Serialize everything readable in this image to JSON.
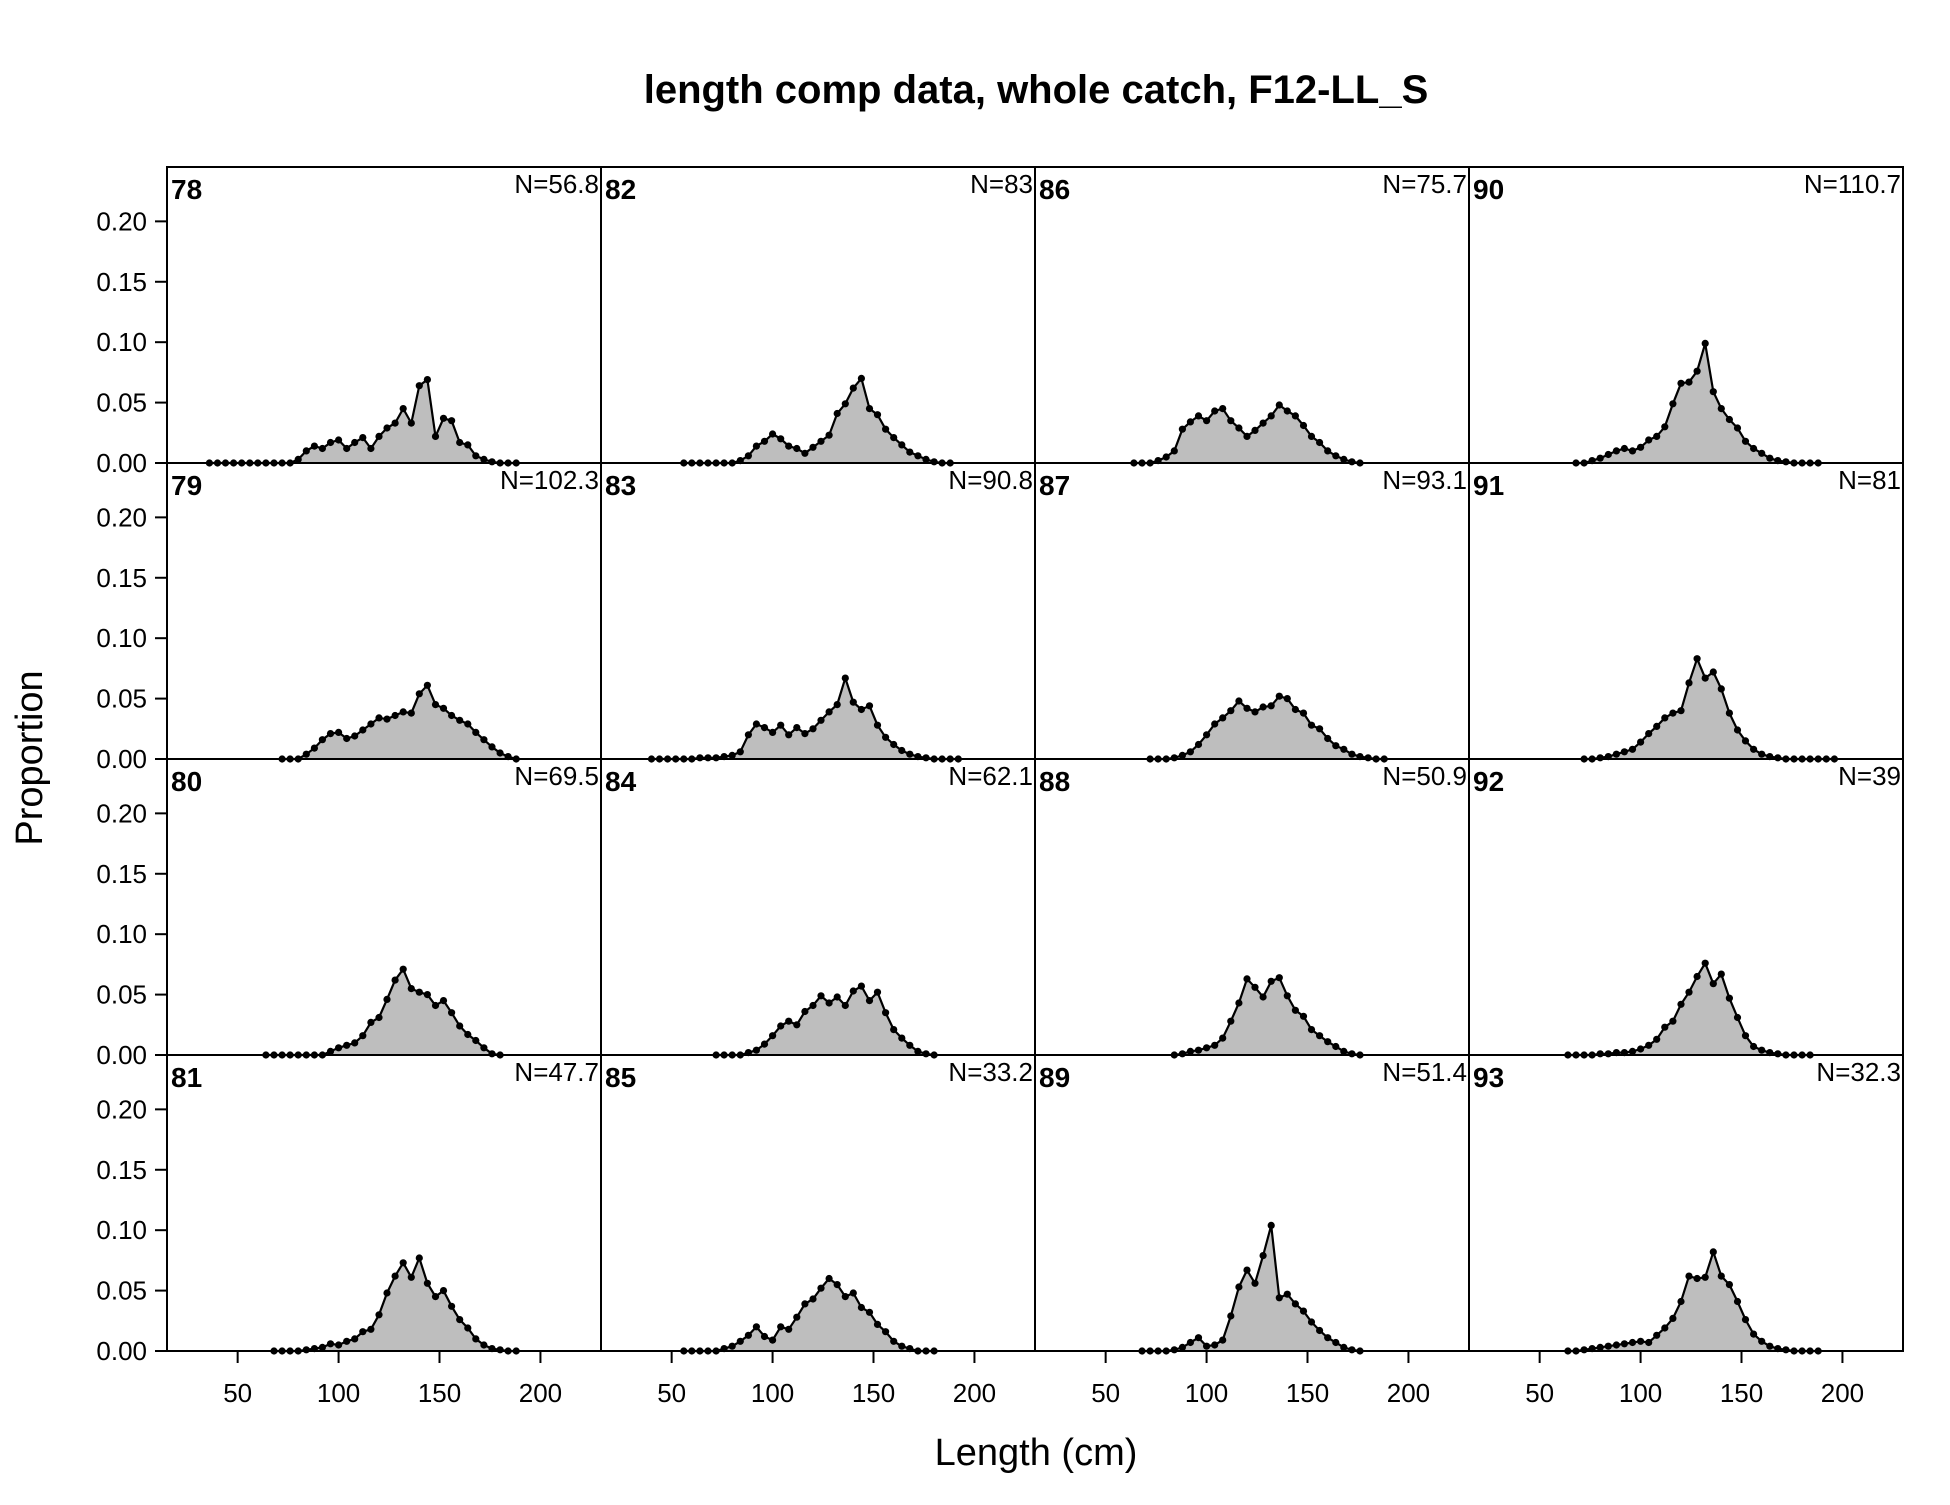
{
  "chart_data": {
    "type": "area",
    "title": "length comp data, whole catch, F12-LL_S",
    "xlabel": "Length (cm)",
    "ylabel": "Proportion",
    "xlim": [
      15,
      230
    ],
    "ylim": [
      0,
      0.245
    ],
    "x_ticks": [
      "50",
      "100",
      "150",
      "200"
    ],
    "y_ticks": [
      "0.00",
      "0.05",
      "0.10",
      "0.15",
      "0.20"
    ],
    "grid": false,
    "fill_color": "#bebebe",
    "line_color": "#000000",
    "layout": {
      "columns": 4,
      "rows": 4,
      "order": "column-major"
    },
    "panels": [
      {
        "label": "78",
        "n_label": "N=56.8",
        "x": [
          36,
          40,
          44,
          48,
          52,
          56,
          60,
          64,
          68,
          72,
          76,
          80,
          84,
          88,
          92,
          96,
          100,
          104,
          108,
          112,
          116,
          120,
          124,
          128,
          132,
          136,
          140,
          144,
          148,
          152,
          156,
          160,
          164,
          168,
          172,
          176,
          180,
          184,
          188
        ],
        "values": [
          0,
          0,
          0,
          0,
          0,
          0,
          0,
          0,
          0,
          0,
          0,
          0.003,
          0.01,
          0.014,
          0.012,
          0.017,
          0.019,
          0.012,
          0.017,
          0.021,
          0.012,
          0.022,
          0.029,
          0.033,
          0.045,
          0.033,
          0.064,
          0.069,
          0.022,
          0.037,
          0.035,
          0.017,
          0.015,
          0.006,
          0.003,
          0.001,
          0,
          0,
          0
        ]
      },
      {
        "label": "79",
        "n_label": "N=102.3",
        "x": [
          72,
          76,
          80,
          84,
          88,
          92,
          96,
          100,
          104,
          108,
          112,
          116,
          120,
          124,
          128,
          132,
          136,
          140,
          144,
          148,
          152,
          156,
          160,
          164,
          168,
          172,
          176,
          180,
          184,
          188
        ],
        "values": [
          0,
          0,
          0,
          0.004,
          0.009,
          0.016,
          0.021,
          0.022,
          0.017,
          0.019,
          0.024,
          0.029,
          0.034,
          0.033,
          0.036,
          0.039,
          0.038,
          0.054,
          0.061,
          0.045,
          0.042,
          0.036,
          0.032,
          0.029,
          0.022,
          0.016,
          0.01,
          0.005,
          0.002,
          0
        ]
      },
      {
        "label": "80",
        "n_label": "N=69.5",
        "x": [
          64,
          68,
          72,
          76,
          80,
          84,
          88,
          92,
          96,
          100,
          104,
          108,
          112,
          116,
          120,
          124,
          128,
          132,
          136,
          140,
          144,
          148,
          152,
          156,
          160,
          164,
          168,
          172,
          176,
          180
        ],
        "values": [
          0,
          0,
          0,
          0,
          0,
          0,
          0,
          0,
          0.003,
          0.006,
          0.008,
          0.01,
          0.016,
          0.027,
          0.031,
          0.046,
          0.062,
          0.071,
          0.055,
          0.052,
          0.05,
          0.041,
          0.045,
          0.035,
          0.024,
          0.017,
          0.012,
          0.006,
          0.001,
          0
        ]
      },
      {
        "label": "81",
        "n_label": "N=47.7",
        "x": [
          68,
          72,
          76,
          80,
          84,
          88,
          92,
          96,
          100,
          104,
          108,
          112,
          116,
          120,
          124,
          128,
          132,
          136,
          140,
          144,
          148,
          152,
          156,
          160,
          164,
          168,
          172,
          176,
          180,
          184,
          188
        ],
        "values": [
          0,
          0,
          0,
          0,
          0.001,
          0.002,
          0.003,
          0.006,
          0.005,
          0.008,
          0.01,
          0.016,
          0.018,
          0.03,
          0.048,
          0.062,
          0.073,
          0.061,
          0.077,
          0.056,
          0.045,
          0.05,
          0.037,
          0.026,
          0.019,
          0.01,
          0.005,
          0.002,
          0.001,
          0,
          0
        ]
      },
      {
        "label": "82",
        "n_label": "N=83",
        "x": [
          56,
          60,
          64,
          68,
          72,
          76,
          80,
          84,
          88,
          92,
          96,
          100,
          104,
          108,
          112,
          116,
          120,
          124,
          128,
          132,
          136,
          140,
          144,
          148,
          152,
          156,
          160,
          164,
          168,
          172,
          176,
          180,
          184,
          188
        ],
        "values": [
          0,
          0,
          0,
          0,
          0,
          0,
          0,
          0.002,
          0.006,
          0.014,
          0.018,
          0.024,
          0.02,
          0.014,
          0.012,
          0.008,
          0.013,
          0.018,
          0.023,
          0.041,
          0.049,
          0.062,
          0.07,
          0.045,
          0.04,
          0.028,
          0.021,
          0.015,
          0.009,
          0.006,
          0.003,
          0.001,
          0,
          0
        ]
      },
      {
        "label": "83",
        "n_label": "N=90.8",
        "x": [
          40,
          44,
          48,
          52,
          56,
          60,
          64,
          68,
          72,
          76,
          80,
          84,
          88,
          92,
          96,
          100,
          104,
          108,
          112,
          116,
          120,
          124,
          128,
          132,
          136,
          140,
          144,
          148,
          152,
          156,
          160,
          164,
          168,
          172,
          176,
          180,
          184,
          188,
          192
        ],
        "values": [
          0,
          0,
          0,
          0,
          0,
          0,
          0.001,
          0.001,
          0.001,
          0.002,
          0.003,
          0.006,
          0.02,
          0.029,
          0.026,
          0.022,
          0.028,
          0.02,
          0.026,
          0.021,
          0.025,
          0.032,
          0.039,
          0.045,
          0.067,
          0.047,
          0.041,
          0.044,
          0.028,
          0.018,
          0.012,
          0.007,
          0.004,
          0.002,
          0.001,
          0,
          0,
          0,
          0
        ]
      },
      {
        "label": "84",
        "n_label": "N=62.1",
        "x": [
          72,
          76,
          80,
          84,
          88,
          92,
          96,
          100,
          104,
          108,
          112,
          116,
          120,
          124,
          128,
          132,
          136,
          140,
          144,
          148,
          152,
          156,
          160,
          164,
          168,
          172,
          176,
          180
        ],
        "values": [
          0,
          0,
          0,
          0,
          0.002,
          0.004,
          0.009,
          0.016,
          0.024,
          0.028,
          0.025,
          0.036,
          0.041,
          0.049,
          0.043,
          0.048,
          0.041,
          0.053,
          0.057,
          0.045,
          0.052,
          0.035,
          0.021,
          0.014,
          0.008,
          0.003,
          0.001,
          0
        ]
      },
      {
        "label": "85",
        "n_label": "N=33.2",
        "x": [
          56,
          60,
          64,
          68,
          72,
          76,
          80,
          84,
          88,
          92,
          96,
          100,
          104,
          108,
          112,
          116,
          120,
          124,
          128,
          132,
          136,
          140,
          144,
          148,
          152,
          156,
          160,
          164,
          168,
          172,
          176,
          180
        ],
        "values": [
          0,
          0,
          0,
          0,
          0,
          0.002,
          0.004,
          0.008,
          0.013,
          0.02,
          0.012,
          0.009,
          0.02,
          0.018,
          0.028,
          0.039,
          0.043,
          0.052,
          0.06,
          0.055,
          0.045,
          0.048,
          0.036,
          0.032,
          0.022,
          0.016,
          0.008,
          0.004,
          0.002,
          0,
          0,
          0
        ]
      },
      {
        "label": "86",
        "n_label": "N=75.7",
        "x": [
          64,
          68,
          72,
          76,
          80,
          84,
          88,
          92,
          96,
          100,
          104,
          108,
          112,
          116,
          120,
          124,
          128,
          132,
          136,
          140,
          144,
          148,
          152,
          156,
          160,
          164,
          168,
          172,
          176
        ],
        "values": [
          0,
          0,
          0,
          0.002,
          0.005,
          0.01,
          0.028,
          0.034,
          0.039,
          0.035,
          0.043,
          0.045,
          0.035,
          0.029,
          0.022,
          0.027,
          0.033,
          0.039,
          0.048,
          0.043,
          0.039,
          0.031,
          0.022,
          0.017,
          0.01,
          0.006,
          0.003,
          0.001,
          0
        ]
      },
      {
        "label": "87",
        "n_label": "N=93.1",
        "x": [
          72,
          76,
          80,
          84,
          88,
          92,
          96,
          100,
          104,
          108,
          112,
          116,
          120,
          124,
          128,
          132,
          136,
          140,
          144,
          148,
          152,
          156,
          160,
          164,
          168,
          172,
          176,
          180,
          184,
          188
        ],
        "values": [
          0,
          0,
          0,
          0.001,
          0.003,
          0.006,
          0.012,
          0.02,
          0.029,
          0.034,
          0.04,
          0.048,
          0.042,
          0.039,
          0.043,
          0.044,
          0.052,
          0.05,
          0.041,
          0.038,
          0.028,
          0.025,
          0.017,
          0.011,
          0.008,
          0.004,
          0.002,
          0.001,
          0,
          0
        ]
      },
      {
        "label": "88",
        "n_label": "N=50.9",
        "x": [
          84,
          88,
          92,
          96,
          100,
          104,
          108,
          112,
          116,
          120,
          124,
          128,
          132,
          136,
          140,
          144,
          148,
          152,
          156,
          160,
          164,
          168,
          172,
          176
        ],
        "values": [
          0,
          0.001,
          0.003,
          0.004,
          0.006,
          0.008,
          0.014,
          0.028,
          0.043,
          0.063,
          0.056,
          0.048,
          0.061,
          0.064,
          0.049,
          0.037,
          0.032,
          0.021,
          0.016,
          0.011,
          0.007,
          0.003,
          0.001,
          0
        ]
      },
      {
        "label": "89",
        "n_label": "N=51.4",
        "x": [
          68,
          72,
          76,
          80,
          84,
          88,
          92,
          96,
          100,
          104,
          108,
          112,
          116,
          120,
          124,
          128,
          132,
          136,
          140,
          144,
          148,
          152,
          156,
          160,
          164,
          168,
          172,
          176
        ],
        "values": [
          0,
          0,
          0,
          0,
          0.001,
          0.003,
          0.007,
          0.011,
          0.004,
          0.005,
          0.009,
          0.029,
          0.053,
          0.067,
          0.056,
          0.079,
          0.104,
          0.044,
          0.047,
          0.039,
          0.033,
          0.024,
          0.017,
          0.011,
          0.007,
          0.003,
          0.001,
          0
        ]
      },
      {
        "label": "90",
        "n_label": "N=110.7",
        "x": [
          68,
          72,
          76,
          80,
          84,
          88,
          92,
          96,
          100,
          104,
          108,
          112,
          116,
          120,
          124,
          128,
          132,
          136,
          140,
          144,
          148,
          152,
          156,
          160,
          164,
          168,
          172,
          176,
          180,
          184,
          188
        ],
        "values": [
          0,
          0,
          0.002,
          0.004,
          0.007,
          0.01,
          0.012,
          0.01,
          0.013,
          0.019,
          0.022,
          0.03,
          0.049,
          0.066,
          0.067,
          0.076,
          0.099,
          0.059,
          0.045,
          0.036,
          0.029,
          0.018,
          0.012,
          0.008,
          0.004,
          0.002,
          0.001,
          0,
          0,
          0,
          0
        ]
      },
      {
        "label": "91",
        "n_label": "N=81",
        "x": [
          72,
          76,
          80,
          84,
          88,
          92,
          96,
          100,
          104,
          108,
          112,
          116,
          120,
          124,
          128,
          132,
          136,
          140,
          144,
          148,
          152,
          156,
          160,
          164,
          168,
          172,
          176,
          180,
          184,
          188,
          192,
          196
        ],
        "values": [
          0,
          0,
          0.001,
          0.002,
          0.004,
          0.006,
          0.008,
          0.014,
          0.021,
          0.027,
          0.034,
          0.038,
          0.04,
          0.063,
          0.083,
          0.067,
          0.072,
          0.058,
          0.038,
          0.024,
          0.015,
          0.008,
          0.004,
          0.002,
          0.001,
          0,
          0,
          0,
          0,
          0,
          0,
          0
        ]
      },
      {
        "label": "92",
        "n_label": "N=39",
        "x": [
          64,
          68,
          72,
          76,
          80,
          84,
          88,
          92,
          96,
          100,
          104,
          108,
          112,
          116,
          120,
          124,
          128,
          132,
          136,
          140,
          144,
          148,
          152,
          156,
          160,
          164,
          168,
          172,
          176,
          180,
          184
        ],
        "values": [
          0,
          0,
          0,
          0,
          0.001,
          0.001,
          0.002,
          0.002,
          0.003,
          0.005,
          0.008,
          0.013,
          0.023,
          0.028,
          0.042,
          0.052,
          0.065,
          0.076,
          0.059,
          0.067,
          0.047,
          0.031,
          0.016,
          0.007,
          0.004,
          0.002,
          0.001,
          0,
          0,
          0,
          0
        ]
      },
      {
        "label": "93",
        "n_label": "N=32.3",
        "x": [
          64,
          68,
          72,
          76,
          80,
          84,
          88,
          92,
          96,
          100,
          104,
          108,
          112,
          116,
          120,
          124,
          128,
          132,
          136,
          140,
          144,
          148,
          152,
          156,
          160,
          164,
          168,
          172,
          176,
          180,
          184,
          188
        ],
        "values": [
          0,
          0,
          0.001,
          0.002,
          0.003,
          0.004,
          0.005,
          0.006,
          0.007,
          0.008,
          0.007,
          0.013,
          0.019,
          0.027,
          0.041,
          0.062,
          0.06,
          0.061,
          0.082,
          0.062,
          0.055,
          0.041,
          0.026,
          0.014,
          0.008,
          0.004,
          0.002,
          0.001,
          0,
          0,
          0,
          0
        ]
      }
    ]
  }
}
